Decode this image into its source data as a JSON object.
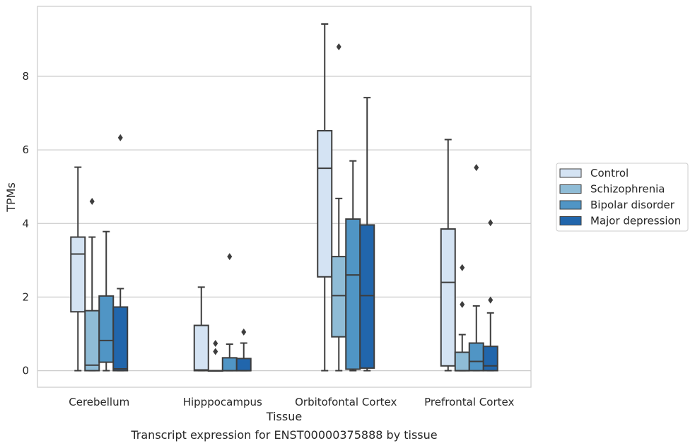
{
  "chart_data": {
    "type": "boxplot",
    "title": "",
    "xlabel": "Tissue",
    "ylabel": "TPMs",
    "caption": "Transcript expression for ENST00000375888 by tissue",
    "ylim": [
      -0.45,
      9.9
    ],
    "yticks": [
      0,
      2,
      4,
      6,
      8
    ],
    "grid": "horizontal",
    "legend_position": "right",
    "categories": [
      "Cerebellum",
      "Hipppocampus",
      "Orbitofontal Cortex",
      "Prefrontal Cortex"
    ],
    "series": [
      {
        "name": "Control",
        "color": "#d4e3f3",
        "boxes": [
          {
            "whislo": 0,
            "q1": 1.6,
            "med": 3.17,
            "q3": 3.63,
            "whishi": 5.53,
            "fliers": []
          },
          {
            "whislo": 0,
            "q1": 0,
            "med": 0.02,
            "q3": 1.23,
            "whishi": 2.27,
            "fliers": []
          },
          {
            "whislo": 0,
            "q1": 2.55,
            "med": 5.5,
            "q3": 6.52,
            "whishi": 9.42,
            "fliers": []
          },
          {
            "whislo": 0,
            "q1": 0.13,
            "med": 2.4,
            "q3": 3.85,
            "whishi": 6.28,
            "fliers": []
          }
        ]
      },
      {
        "name": "Schizophrenia",
        "color": "#8fbcd6",
        "boxes": [
          {
            "whislo": 0,
            "q1": 0,
            "med": 0.15,
            "q3": 1.63,
            "whishi": 3.63,
            "fliers": [
              4.6
            ]
          },
          {
            "whislo": 0,
            "q1": 0,
            "med": 0,
            "q3": 0,
            "whishi": 0,
            "fliers": [
              0.52,
              0.74
            ]
          },
          {
            "whislo": 0,
            "q1": 0.92,
            "med": 2.04,
            "q3": 3.1,
            "whishi": 4.68,
            "fliers": [
              8.8
            ]
          },
          {
            "whislo": 0,
            "q1": 0,
            "med": 0,
            "q3": 0.5,
            "whishi": 0.98,
            "fliers": [
              1.8,
              2.8
            ]
          }
        ]
      },
      {
        "name": "Bipolar disorder",
        "color": "#5095c5",
        "boxes": [
          {
            "whislo": 0,
            "q1": 0.23,
            "med": 0.82,
            "q3": 2.03,
            "whishi": 3.78,
            "fliers": []
          },
          {
            "whislo": 0,
            "q1": 0,
            "med": 0,
            "q3": 0.35,
            "whishi": 0.72,
            "fliers": [
              3.1
            ]
          },
          {
            "whislo": 0,
            "q1": 0.04,
            "med": 2.6,
            "q3": 4.12,
            "whishi": 5.7,
            "fliers": []
          },
          {
            "whislo": 0,
            "q1": 0,
            "med": 0.25,
            "q3": 0.75,
            "whishi": 1.76,
            "fliers": [
              5.52
            ]
          }
        ]
      },
      {
        "name": "Major depression",
        "color": "#2166ac",
        "boxes": [
          {
            "whislo": 0,
            "q1": 0,
            "med": 0.05,
            "q3": 1.73,
            "whishi": 2.23,
            "fliers": [
              6.33
            ]
          },
          {
            "whislo": 0,
            "q1": 0,
            "med": 0,
            "q3": 0.33,
            "whishi": 0.75,
            "fliers": [
              1.05
            ]
          },
          {
            "whislo": 0,
            "q1": 0.07,
            "med": 2.04,
            "q3": 3.96,
            "whishi": 7.42,
            "fliers": []
          },
          {
            "whislo": 0,
            "q1": 0,
            "med": 0.13,
            "q3": 0.66,
            "whishi": 1.57,
            "fliers": [
              1.92,
              4.02
            ]
          }
        ]
      }
    ]
  }
}
